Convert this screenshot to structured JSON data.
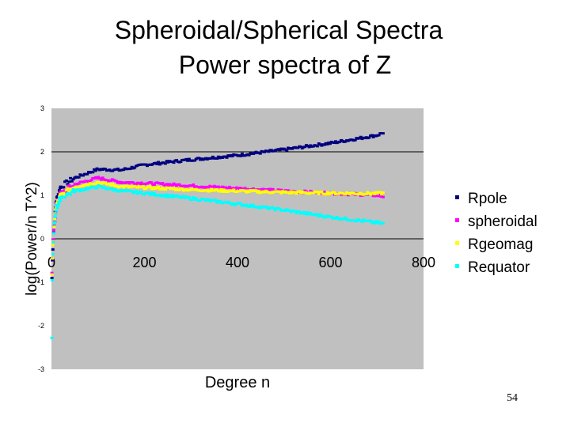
{
  "slide": {
    "title_line1": "Spheroidal/Spherical Spectra",
    "title_line2": "Power spectra of Z",
    "page_number": "54"
  },
  "chart_data": {
    "type": "scatter",
    "title": "",
    "xlabel": "Degree n",
    "ylabel": "log(Power/n T^2)",
    "xlim": [
      0,
      800
    ],
    "ylim": [
      -3,
      3
    ],
    "y_ticks": [
      3,
      2,
      1,
      0,
      -1,
      -2,
      -3
    ],
    "y_tick_labels": [
      "3",
      "2",
      "1",
      "0",
      "-1",
      "-2",
      "-3"
    ],
    "x_ticks": [
      0,
      200,
      400,
      600,
      800
    ],
    "x_tick_labels": [
      "0",
      "200",
      "400",
      "600",
      "800"
    ],
    "gridlines_y": [
      2
    ],
    "plot_background": "#c0c0c0",
    "legend_position": "right",
    "series": [
      {
        "name": "Rpole",
        "color": "#000080",
        "marker": "diamond",
        "x": [
          1,
          2,
          3,
          4,
          6,
          10,
          20,
          50,
          100,
          150,
          200,
          300,
          400,
          500,
          600,
          700,
          715
        ],
        "y": [
          -0.9,
          -0.5,
          -0.2,
          0.0,
          0.3,
          0.85,
          1.2,
          1.4,
          1.6,
          1.58,
          1.7,
          1.82,
          1.92,
          2.05,
          2.2,
          2.38,
          2.45
        ]
      },
      {
        "name": "spheroidal",
        "color": "#ff00ff",
        "marker": "square",
        "x": [
          1,
          2,
          3,
          4,
          6,
          10,
          20,
          50,
          100,
          150,
          200,
          300,
          400,
          500,
          600,
          700,
          715
        ],
        "y": [
          -0.8,
          -0.5,
          -0.2,
          0.0,
          0.3,
          0.75,
          1.05,
          1.25,
          1.4,
          1.3,
          1.28,
          1.22,
          1.16,
          1.1,
          1.05,
          1.0,
          0.97
        ]
      },
      {
        "name": "Rgeomag",
        "color": "#ffff00",
        "marker": "triangle",
        "x": [
          1,
          2,
          3,
          4,
          6,
          10,
          20,
          50,
          100,
          150,
          200,
          300,
          400,
          500,
          600,
          700,
          715
        ],
        "y": [
          -0.8,
          -0.5,
          -0.2,
          0.0,
          0.3,
          0.75,
          1.0,
          1.2,
          1.3,
          1.2,
          1.18,
          1.13,
          1.1,
          1.07,
          1.05,
          1.04,
          1.05
        ]
      },
      {
        "name": "Requator",
        "color": "#00ffff",
        "marker": "diamond",
        "x": [
          1,
          2,
          3,
          4,
          6,
          10,
          20,
          50,
          100,
          150,
          200,
          300,
          400,
          500,
          600,
          700,
          715
        ],
        "y": [
          -2.3,
          -0.9,
          -0.4,
          -0.1,
          0.3,
          0.7,
          0.95,
          1.1,
          1.2,
          1.1,
          1.05,
          0.93,
          0.8,
          0.66,
          0.5,
          0.37,
          0.35
        ]
      }
    ]
  }
}
